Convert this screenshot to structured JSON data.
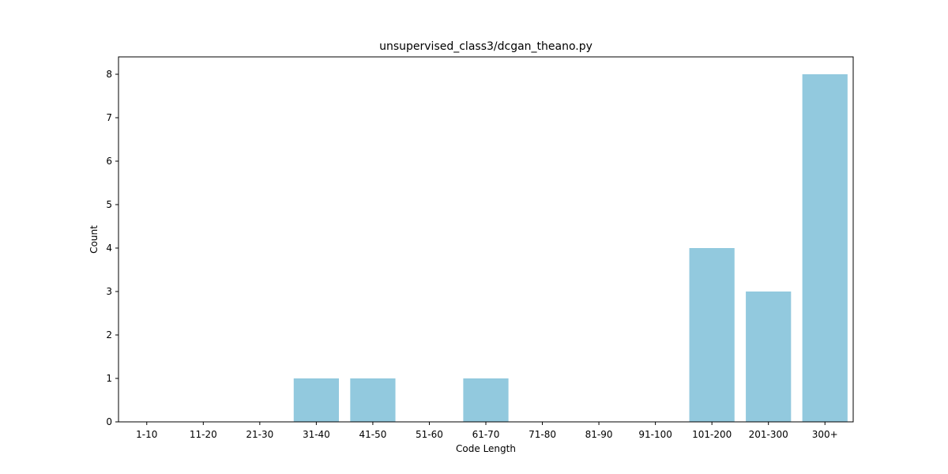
{
  "chart_data": {
    "type": "bar",
    "title": "unsupervised_class3/dcgan_theano.py",
    "xlabel": "Code Length",
    "ylabel": "Count",
    "categories": [
      "1-10",
      "11-20",
      "21-30",
      "31-40",
      "41-50",
      "51-60",
      "61-70",
      "71-80",
      "81-90",
      "91-100",
      "101-200",
      "201-300",
      "300+"
    ],
    "values": [
      0,
      0,
      0,
      1,
      1,
      0,
      1,
      0,
      0,
      0,
      4,
      3,
      8
    ],
    "ylim": [
      0,
      8.4
    ],
    "yticks": [
      0,
      1,
      2,
      3,
      4,
      5,
      6,
      7,
      8
    ],
    "bar_color": "#92c9de",
    "grid": false,
    "legend": "none"
  }
}
